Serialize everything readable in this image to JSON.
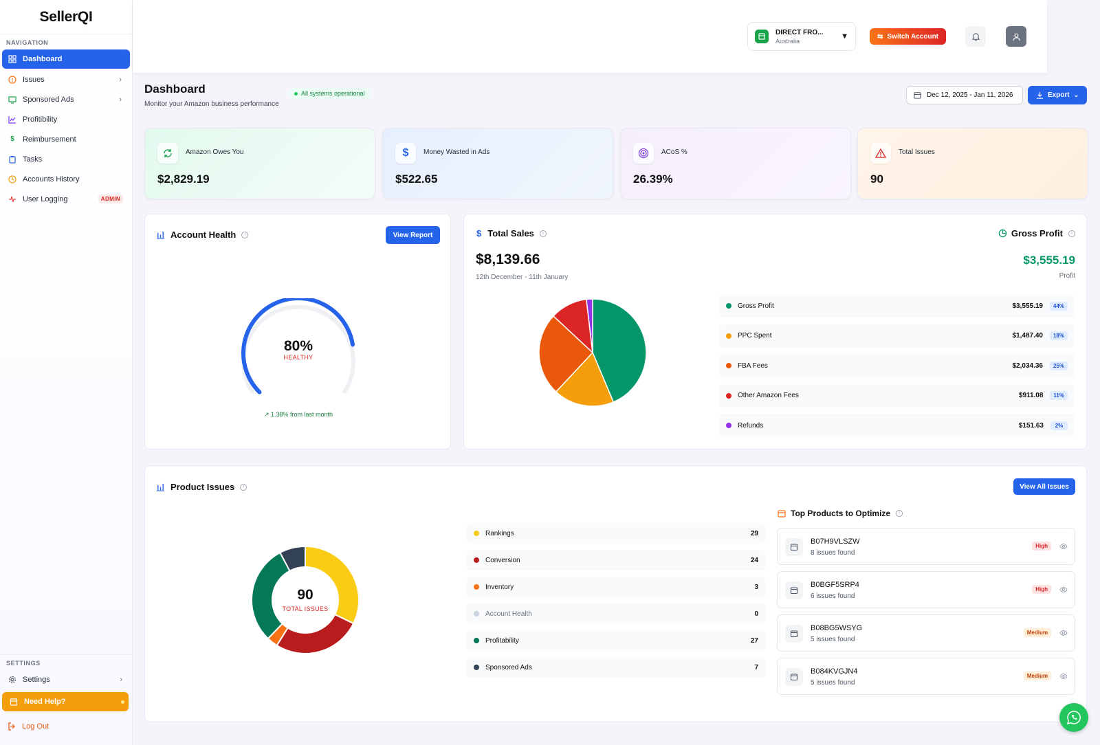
{
  "app": {
    "logo": "SellerQI"
  },
  "sidebar": {
    "nav_heading": "NAVIGATION",
    "items": [
      {
        "label": "Dashboard",
        "icon": "grid-icon"
      },
      {
        "label": "Issues",
        "icon": "alert-circle-icon"
      },
      {
        "label": "Sponsored Ads",
        "icon": "monitor-icon"
      },
      {
        "label": "Profitibility",
        "icon": "line-chart-icon"
      },
      {
        "label": "Reimbursement",
        "icon": "dollar-icon"
      },
      {
        "label": "Tasks",
        "icon": "clipboard-icon"
      },
      {
        "label": "Accounts History",
        "icon": "clock-icon"
      },
      {
        "label": "User Logging",
        "icon": "activity-icon",
        "badge": "ADMIN"
      }
    ],
    "settings_heading": "SETTINGS",
    "settings_label": "Settings",
    "help_label": "Need Help?",
    "logout_label": "Log Out"
  },
  "header": {
    "account_name": "DIRECT FRO...",
    "account_country": "Australia",
    "switch_label": "Switch Account"
  },
  "page": {
    "title": "Dashboard",
    "subtitle": "Monitor your Amazon business performance",
    "status": "All systems operational",
    "date_range": "Dec 12, 2025 - Jan 11, 2026",
    "export_label": "Export"
  },
  "kpis": [
    {
      "label": "Amazon Owes You",
      "value": "$2,829.19",
      "icon": "refresh-icon"
    },
    {
      "label": "Money Wasted in Ads",
      "value": "$522.65",
      "icon": "dollar-icon"
    },
    {
      "label": "ACoS %",
      "value": "26.39%",
      "icon": "target-icon"
    },
    {
      "label": "Total Issues",
      "value": "90",
      "icon": "warning-icon"
    }
  ],
  "account_health": {
    "title": "Account Health",
    "button": "View Report",
    "percent": "80%",
    "status": "HEALTHY",
    "gauge_fraction": 0.8,
    "trend": "1.38% from last month"
  },
  "total_sales": {
    "title": "Total Sales",
    "value": "$8,139.66",
    "period": "12th December - 11th January",
    "gross_title": "Gross Profit",
    "gross_value": "$3,555.19",
    "gross_caption": "Profit"
  },
  "chart_data": [
    {
      "type": "pie",
      "categories": [
        "Gross Profit",
        "PPC Spent",
        "FBA Fees",
        "Other Amazon Fees",
        "Refunds"
      ],
      "values": [
        3555.19,
        1487.4,
        2034.36,
        911.08,
        151.63
      ],
      "value_labels": [
        "$3,555.19",
        "$1,487.40",
        "$2,034.36",
        "$911.08",
        "$151.63"
      ],
      "percent_labels": [
        "44%",
        "18%",
        "25%",
        "11%",
        "2%"
      ],
      "colors": [
        "#059669",
        "#f59e0b",
        "#ea580c",
        "#dc2626",
        "#9333ea"
      ]
    },
    {
      "type": "pie",
      "categories": [
        "Rankings",
        "Conversion",
        "Inventory",
        "Account Health",
        "Profitability",
        "Sponsored Ads"
      ],
      "values": [
        29,
        24,
        3,
        0,
        27,
        7
      ],
      "colors": [
        "#facc15",
        "#b91c1c",
        "#f97316",
        "#cbd5e1",
        "#047857",
        "#334155"
      ],
      "center_value": "90",
      "center_label": "TOTAL ISSUES"
    }
  ],
  "product_issues": {
    "title": "Product Issues",
    "button": "View All Issues"
  },
  "top_products": {
    "title": "Top Products to Optimize",
    "items": [
      {
        "asin": "B07H9VLSZW",
        "issues": "8 issues found",
        "priority": "High"
      },
      {
        "asin": "B0BGF5SRP4",
        "issues": "6 issues found",
        "priority": "High"
      },
      {
        "asin": "B08BG5WSYG",
        "issues": "5 issues found",
        "priority": "Medium"
      },
      {
        "asin": "B084KVGJN4",
        "issues": "5 issues found",
        "priority": "Medium"
      }
    ]
  }
}
